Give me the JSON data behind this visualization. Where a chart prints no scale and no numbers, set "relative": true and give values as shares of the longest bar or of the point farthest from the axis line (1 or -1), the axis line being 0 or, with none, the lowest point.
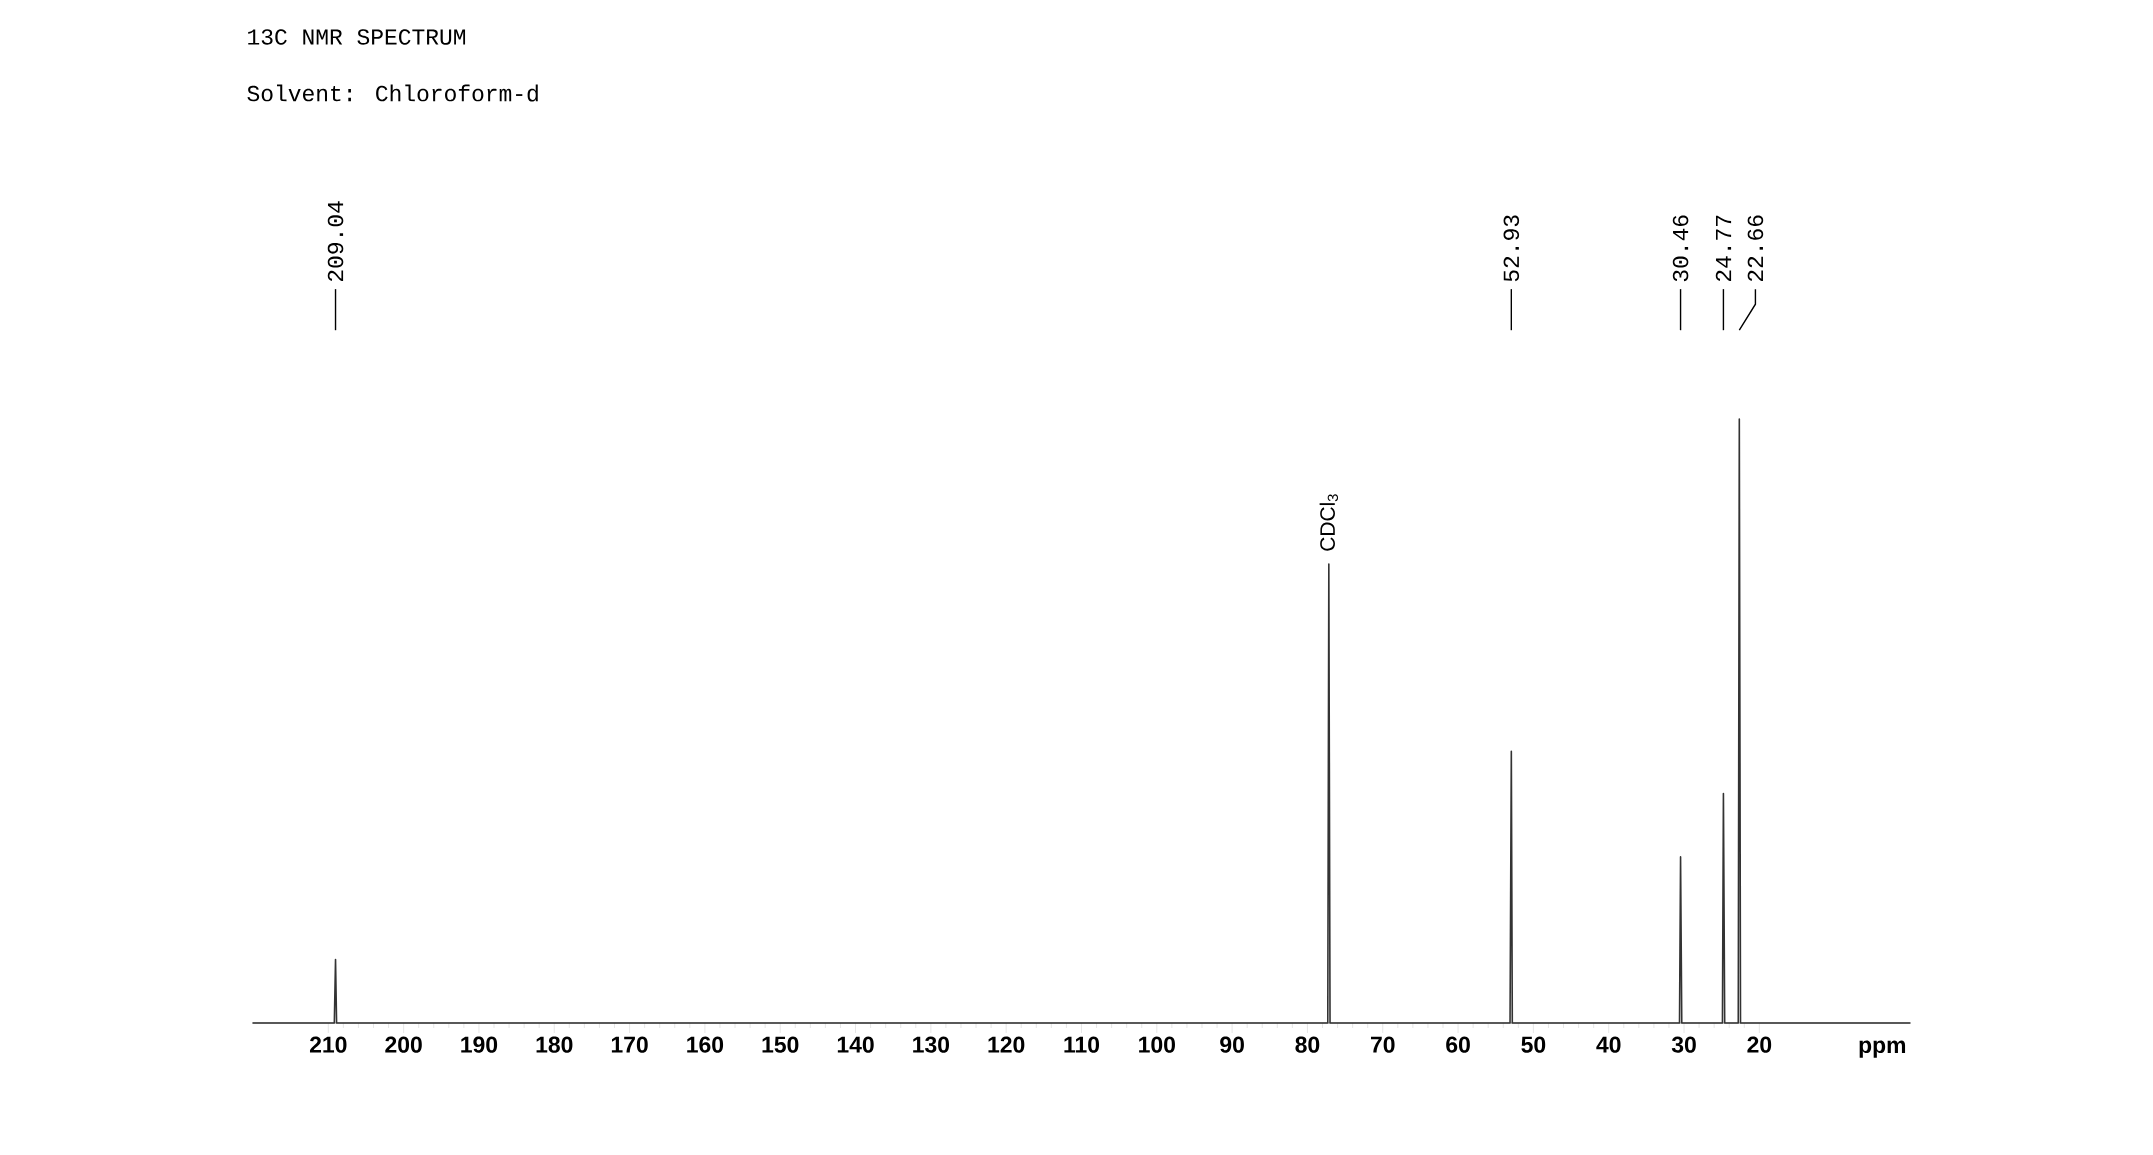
{
  "chart_data": {
    "type": "line",
    "title": "13C NMR SPECTRUM",
    "subtitle": "Solvent: Chloroform-d",
    "xlabel": "ppm",
    "relative": true,
    "marker": "none",
    "xlim": [
      220,
      0
    ],
    "xticks": [
      210,
      200,
      190,
      180,
      170,
      160,
      150,
      140,
      130,
      120,
      110,
      100,
      90,
      80,
      70,
      60,
      50,
      40,
      30,
      20
    ],
    "series": [
      {
        "color": "#333333",
        "x": [
          220,
          209.2,
          209.04,
          208.9,
          77.3,
          77.16,
          77.0,
          53.1,
          52.93,
          52.8,
          30.6,
          30.46,
          30.3,
          24.9,
          24.77,
          24.6,
          22.8,
          22.66,
          22.5,
          0
        ],
        "values": [
          0,
          0,
          0.105,
          0,
          0,
          0.76,
          0,
          0,
          0.45,
          0,
          0,
          0.275,
          0,
          0,
          0.38,
          0,
          0,
          1,
          0,
          0
        ]
      }
    ],
    "annotations": [
      {
        "text": "209.04",
        "x": 209.04
      },
      {
        "text": "52.93",
        "x": 52.93
      },
      {
        "text": "30.46",
        "x": 30.46
      },
      {
        "text": "24.77",
        "x": 24.77
      },
      {
        "text": "22.66",
        "x": 22.66
      },
      {
        "text": "CDCl$_{3}$",
        "x": 77.16,
        "y": 0.76
      }
    ]
  }
}
